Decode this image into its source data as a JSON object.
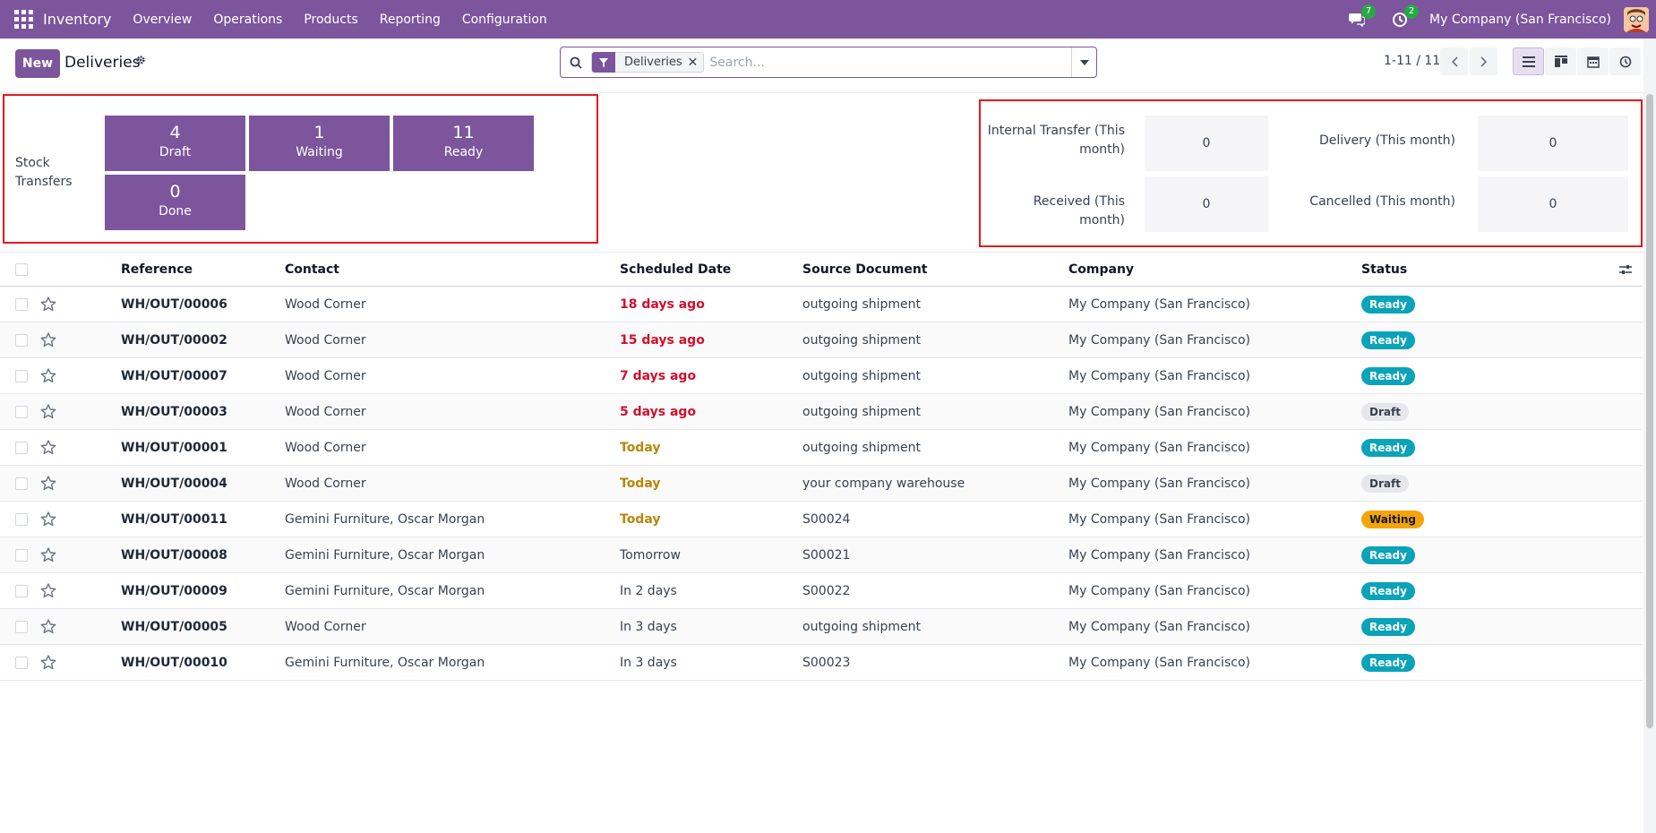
{
  "navbar": {
    "app_name": "Inventory",
    "menu": [
      "Overview",
      "Operations",
      "Products",
      "Reporting",
      "Configuration"
    ],
    "messages_count": "7",
    "activities_count": "2",
    "company": "My Company (San Francisco)"
  },
  "control_panel": {
    "new_label": "New",
    "title": "Deliveries",
    "facet_label": "Deliveries",
    "search_placeholder": "Search...",
    "pager": "1-11 / 11"
  },
  "dashboard": {
    "stock_label": "Stock Transfers",
    "tiles": [
      {
        "value": "4",
        "label": "Draft"
      },
      {
        "value": "1",
        "label": "Waiting"
      },
      {
        "value": "11",
        "label": "Ready"
      },
      {
        "value": "0",
        "label": "Done"
      }
    ],
    "stats": [
      {
        "label": "Internal Transfer (This month)",
        "value": "0"
      },
      {
        "label": "Delivery (This month)",
        "value": "0"
      },
      {
        "label": "Received (This month)",
        "value": "0"
      },
      {
        "label": "Cancelled (This month)",
        "value": "0"
      }
    ]
  },
  "table": {
    "headers": [
      "Reference",
      "Contact",
      "Scheduled Date",
      "Source Document",
      "Company",
      "Status"
    ],
    "rows": [
      {
        "reference": "WH/OUT/00006",
        "contact": "Wood Corner",
        "date": "18 days ago",
        "date_style": "red",
        "source": "outgoing shipment",
        "company": "My Company (San Francisco)",
        "status": "Ready"
      },
      {
        "reference": "WH/OUT/00002",
        "contact": "Wood Corner",
        "date": "15 days ago",
        "date_style": "red",
        "source": "outgoing shipment",
        "company": "My Company (San Francisco)",
        "status": "Ready"
      },
      {
        "reference": "WH/OUT/00007",
        "contact": "Wood Corner",
        "date": "7 days ago",
        "date_style": "red",
        "source": "outgoing shipment",
        "company": "My Company (San Francisco)",
        "status": "Ready"
      },
      {
        "reference": "WH/OUT/00003",
        "contact": "Wood Corner",
        "date": "5 days ago",
        "date_style": "red",
        "source": "outgoing shipment",
        "company": "My Company (San Francisco)",
        "status": "Draft"
      },
      {
        "reference": "WH/OUT/00001",
        "contact": "Wood Corner",
        "date": "Today",
        "date_style": "orange",
        "source": "outgoing shipment",
        "company": "My Company (San Francisco)",
        "status": "Ready"
      },
      {
        "reference": "WH/OUT/00004",
        "contact": "Wood Corner",
        "date": "Today",
        "date_style": "orange",
        "source": "your company warehouse",
        "company": "My Company (San Francisco)",
        "status": "Draft"
      },
      {
        "reference": "WH/OUT/00011",
        "contact": "Gemini Furniture, Oscar Morgan",
        "date": "Today",
        "date_style": "orange",
        "source": "S00024",
        "company": "My Company (San Francisco)",
        "status": "Waiting"
      },
      {
        "reference": "WH/OUT/00008",
        "contact": "Gemini Furniture, Oscar Morgan",
        "date": "Tomorrow",
        "date_style": "normal",
        "source": "S00021",
        "company": "My Company (San Francisco)",
        "status": "Ready"
      },
      {
        "reference": "WH/OUT/00009",
        "contact": "Gemini Furniture, Oscar Morgan",
        "date": "In 2 days",
        "date_style": "normal",
        "source": "S00022",
        "company": "My Company (San Francisco)",
        "status": "Ready"
      },
      {
        "reference": "WH/OUT/00005",
        "contact": "Wood Corner",
        "date": "In 3 days",
        "date_style": "normal",
        "source": "outgoing shipment",
        "company": "My Company (San Francisco)",
        "status": "Ready"
      },
      {
        "reference": "WH/OUT/00010",
        "contact": "Gemini Furniture, Oscar Morgan",
        "date": "In 3 days",
        "date_style": "normal",
        "source": "S00023",
        "company": "My Company (San Francisco)",
        "status": "Ready"
      }
    ]
  },
  "colors": {
    "brand": "#7C559C",
    "overdue": "#D0102E",
    "today": "#B8860B",
    "ready": "#0AA3B9",
    "waiting": "#F3A508",
    "highlight_border": "#E21A1A"
  },
  "icons": [
    "apps-grid-icon",
    "chat-icon",
    "activity-clock-icon",
    "gear-icon",
    "search-icon",
    "filter-icon",
    "close-icon",
    "caret-down-icon",
    "chevron-left-icon",
    "chevron-right-icon",
    "list-view-icon",
    "kanban-view-icon",
    "calendar-view-icon",
    "activity-view-icon",
    "star-icon",
    "column-settings-icon"
  ]
}
